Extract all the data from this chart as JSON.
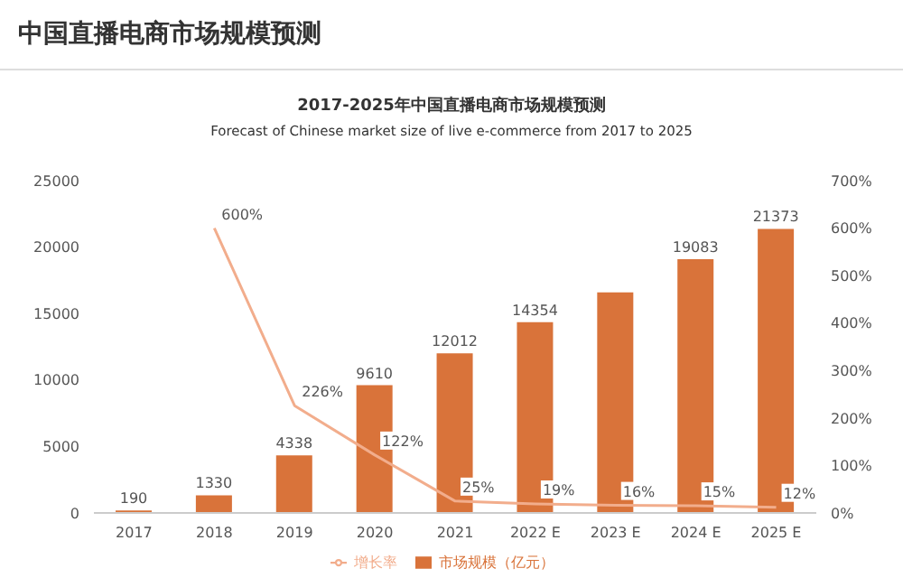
{
  "chart_data": {
    "type": "bar",
    "title": "中国直播电商市场规模预测",
    "subtitle": "2017-2025年中国直播电商市场规模预测\nForecast of Chinese market size of live e-commerce from 2017 to 2025",
    "categories": [
      "2017",
      "2018",
      "2019",
      "2020",
      "2021",
      "2022 E",
      "2023 E",
      "2024 E",
      "2025 E"
    ],
    "series": [
      {
        "name": "市场规模（亿元）",
        "color": "#d9733a",
        "values": [
          190,
          1330,
          4338,
          9610,
          12012,
          14354,
          16600,
          19083,
          21373
        ],
        "value_labels": [
          "190",
          "1330",
          "4338",
          "9610",
          "12012",
          "14354",
          null,
          "19083",
          "21373"
        ]
      },
      {
        "name": "增长率",
        "type": "line",
        "axis": "y2",
        "color": "#f2ad8c",
        "values": [
          null,
          600,
          226,
          122,
          25,
          19,
          16,
          15,
          12
        ],
        "value_labels": [
          null,
          "600%",
          "226%",
          "122%",
          "25%",
          "19%",
          "16%",
          "15%",
          "12%"
        ]
      }
    ],
    "ylim": [
      0,
      25000
    ],
    "yticks": [
      0,
      5000,
      10000,
      15000,
      20000,
      25000
    ],
    "y2lim": [
      0,
      700
    ],
    "y2ticks": [
      {
        "value": 0,
        "label": "0%"
      },
      {
        "value": 100,
        "label": "100%"
      },
      {
        "value": 200,
        "label": "200%"
      },
      {
        "value": 300,
        "label": "300%"
      },
      {
        "value": 400,
        "label": "400%"
      },
      {
        "value": 500,
        "label": "500%"
      },
      {
        "value": 600,
        "label": "600%"
      },
      {
        "value": 700,
        "label": "700%"
      }
    ],
    "grid": false,
    "legend": "bottom",
    "marker": "none",
    "line_style": "solid"
  }
}
